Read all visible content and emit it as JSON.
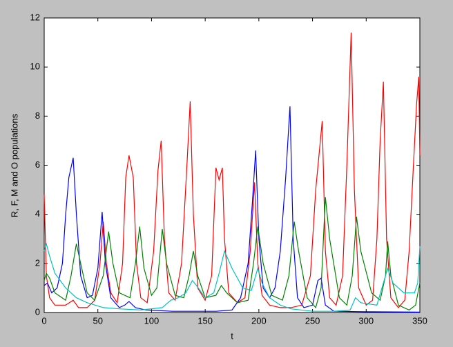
{
  "chart_data": {
    "type": "line",
    "xlabel": "t",
    "ylabel": "R, F, M and O populations",
    "xlim": [
      0,
      350
    ],
    "xticks": [
      0,
      50,
      100,
      150,
      200,
      250,
      300,
      350
    ],
    "ylim": [
      0,
      12
    ],
    "yticks": [
      0,
      2,
      4,
      6,
      8,
      10,
      12
    ],
    "grid": false,
    "series": [
      {
        "color": "#ff0000",
        "x": [
          0,
          2,
          5,
          10,
          20,
          27,
          32,
          40,
          47,
          52,
          55,
          58,
          62,
          68,
          73,
          76,
          79,
          83,
          86,
          90,
          96,
          102,
          106,
          109,
          112,
          116,
          122,
          128,
          133,
          136,
          139,
          143,
          150,
          156,
          160,
          163,
          166,
          168,
          172,
          180,
          187,
          192,
          196,
          199,
          203,
          210,
          220,
          230,
          240,
          248,
          253,
          259,
          262,
          266,
          272,
          278,
          282,
          286,
          289,
          293,
          300,
          306,
          310,
          313,
          316,
          319,
          323,
          330,
          336,
          340,
          344,
          347,
          349,
          350
        ],
        "values": [
          4.8,
          1.5,
          0.6,
          0.3,
          0.3,
          0.5,
          0.2,
          0.2,
          0.5,
          2.0,
          3.7,
          2.0,
          0.8,
          0.4,
          2.0,
          5.5,
          6.4,
          5.5,
          2.0,
          0.6,
          0.4,
          2.5,
          5.8,
          7.0,
          3.0,
          0.8,
          0.5,
          2.0,
          6.0,
          8.6,
          4.0,
          1.0,
          0.5,
          1.5,
          5.9,
          5.4,
          5.9,
          3.0,
          0.8,
          0.4,
          0.6,
          2.5,
          5.3,
          2.0,
          0.7,
          0.3,
          0.2,
          0.2,
          0.3,
          1.5,
          5.0,
          7.8,
          2.5,
          0.6,
          0.3,
          1.5,
          6.0,
          11.4,
          5.0,
          1.0,
          0.3,
          0.5,
          3.0,
          7.0,
          9.4,
          3.0,
          0.6,
          0.2,
          0.5,
          2.5,
          6.0,
          8.5,
          9.6,
          6.4
        ]
      },
      {
        "color": "#0000ff",
        "x": [
          0,
          3,
          7,
          12,
          17,
          20,
          23,
          27,
          30,
          34,
          40,
          45,
          50,
          54,
          57,
          62,
          70,
          75,
          79,
          85,
          95,
          120,
          160,
          175,
          183,
          190,
          194,
          197,
          200,
          204,
          210,
          215,
          220,
          225,
          229,
          232,
          236,
          242,
          250,
          255,
          258,
          262,
          270,
          300,
          350
        ],
        "values": [
          1.1,
          1.2,
          0.8,
          1.0,
          2.0,
          4.0,
          5.5,
          6.3,
          4.0,
          1.5,
          0.6,
          0.7,
          1.8,
          4.1,
          2.0,
          0.6,
          0.2,
          0.3,
          0.45,
          0.2,
          0.1,
          0.05,
          0.05,
          0.1,
          0.6,
          2.0,
          4.5,
          6.6,
          3.0,
          1.0,
          0.6,
          1.0,
          2.5,
          5.5,
          8.4,
          3.0,
          0.6,
          0.2,
          0.3,
          1.3,
          1.4,
          0.3,
          0.05,
          0.03,
          0.02
        ]
      },
      {
        "color": "#008000",
        "x": [
          0,
          2,
          5,
          10,
          20,
          25,
          30,
          34,
          40,
          47,
          55,
          60,
          64,
          70,
          80,
          85,
          89,
          93,
          100,
          105,
          110,
          114,
          122,
          130,
          135,
          139,
          143,
          150,
          160,
          165,
          170,
          180,
          190,
          195,
          199,
          204,
          212,
          222,
          228,
          233,
          237,
          245,
          253,
          258,
          262,
          266,
          275,
          282,
          287,
          291,
          295,
          305,
          313,
          318,
          320,
          323,
          330,
          340,
          346,
          350
        ],
        "values": [
          1.3,
          1.6,
          1.4,
          0.8,
          0.5,
          1.5,
          2.8,
          2.0,
          0.8,
          0.5,
          1.5,
          3.3,
          2.0,
          0.8,
          0.6,
          2.0,
          3.5,
          1.8,
          0.7,
          1.0,
          3.4,
          2.0,
          0.7,
          0.6,
          1.5,
          2.5,
          1.5,
          0.6,
          0.7,
          1.1,
          0.8,
          0.4,
          0.5,
          2.0,
          3.5,
          2.0,
          0.7,
          0.5,
          1.5,
          3.7,
          2.5,
          0.6,
          0.2,
          1.0,
          4.7,
          3.0,
          0.6,
          0.3,
          1.5,
          3.9,
          2.5,
          0.8,
          0.5,
          1.5,
          2.9,
          1.5,
          0.3,
          0.1,
          0.3,
          1.2
        ]
      },
      {
        "color": "#00c0c0",
        "x": [
          0,
          2,
          5,
          10,
          20,
          30,
          40,
          55,
          70,
          90,
          110,
          118,
          125,
          132,
          138,
          142,
          150,
          158,
          163,
          168,
          175,
          185,
          193,
          199,
          203,
          210,
          220,
          230,
          250,
          270,
          285,
          290,
          295,
          310,
          316,
          320,
          325,
          335,
          345,
          348,
          350
        ],
        "values": [
          2.5,
          2.8,
          2.3,
          1.6,
          1.0,
          0.6,
          0.4,
          0.2,
          0.15,
          0.1,
          0.2,
          0.5,
          0.6,
          0.8,
          1.3,
          1.1,
          0.6,
          0.8,
          1.6,
          2.5,
          1.8,
          1.0,
          0.9,
          1.8,
          1.2,
          0.6,
          0.3,
          0.15,
          0.05,
          0.05,
          0.1,
          0.6,
          0.4,
          0.3,
          1.2,
          1.8,
          1.2,
          0.8,
          0.8,
          1.2,
          2.7
        ]
      }
    ]
  }
}
